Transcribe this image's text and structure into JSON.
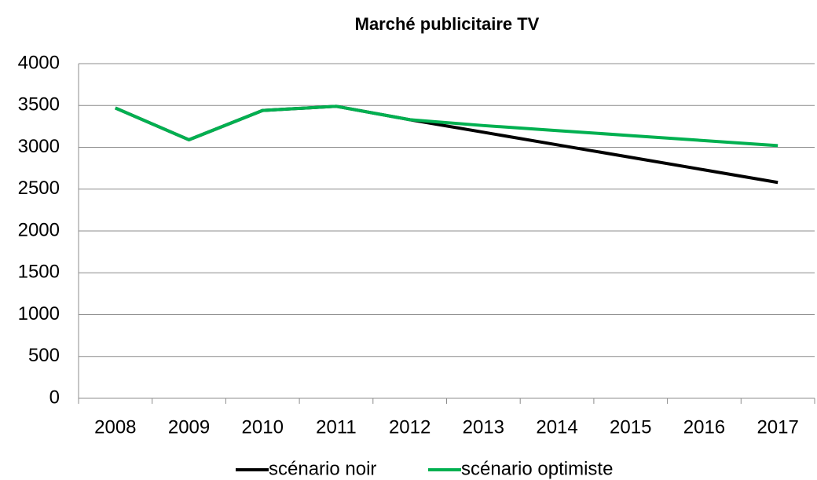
{
  "chart_data": {
    "type": "line",
    "title": "Marché publicitaire TV",
    "categories": [
      "2008",
      "2009",
      "2010",
      "2011",
      "2012",
      "2013",
      "2014",
      "2015",
      "2016",
      "2017"
    ],
    "series": [
      {
        "name": "scénario noir",
        "color": "#000000",
        "values": [
          3470,
          3090,
          3440,
          3490,
          3330,
          3180,
          3030,
          2880,
          2730,
          2580
        ]
      },
      {
        "name": "scénario optimiste",
        "color": "#00b050",
        "values": [
          3470,
          3090,
          3440,
          3490,
          3330,
          3260,
          3200,
          3140,
          3080,
          3020
        ]
      }
    ],
    "ylim": [
      0,
      4000
    ],
    "yticks": [
      0,
      500,
      1000,
      1500,
      2000,
      2500,
      3000,
      3500,
      4000
    ],
    "grid": true,
    "legend": "bottom"
  }
}
